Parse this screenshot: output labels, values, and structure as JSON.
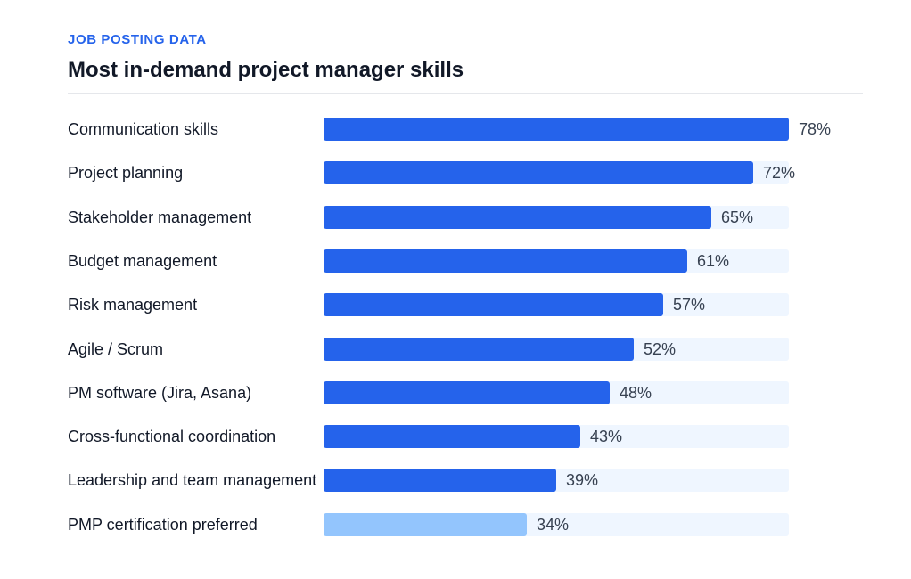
{
  "header": {
    "eyebrow": "JOB POSTING DATA",
    "title": "Most in-demand project manager skills"
  },
  "colors": {
    "accent": "#2563eb",
    "muted_bar": "#93c5fd",
    "track": "#eff6ff"
  },
  "chart_data": {
    "type": "bar",
    "orientation": "horizontal",
    "categories": [
      "Communication skills",
      "Project planning",
      "Stakeholder management",
      "Budget management",
      "Risk management",
      "Agile / Scrum",
      "PM software (Jira, Asana)",
      "Cross-functional coordination",
      "Leadership and team management",
      "PMP certification preferred"
    ],
    "values": [
      78,
      72,
      65,
      61,
      57,
      52,
      48,
      43,
      39,
      34
    ],
    "value_labels": [
      "78%",
      "72%",
      "65%",
      "61%",
      "57%",
      "52%",
      "48%",
      "43%",
      "39%",
      "34%"
    ],
    "xlim": [
      0,
      78
    ],
    "grid": false,
    "title": "Most in-demand project manager skills",
    "highlighted_last_muted": true
  }
}
